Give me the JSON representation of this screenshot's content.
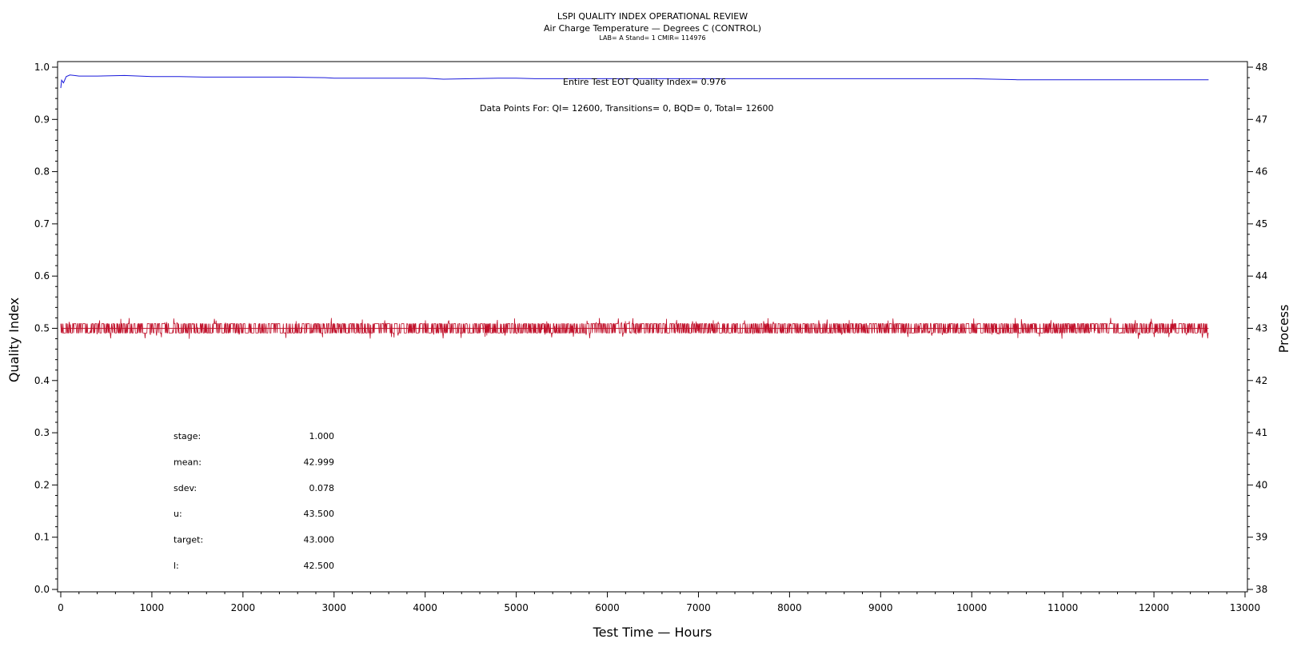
{
  "header": {
    "title": "LSPI QUALITY INDEX OPERATIONAL REVIEW",
    "subtitle": "Air Charge Temperature — Degrees C (CONTROL)",
    "info": "LAB= A Stand= 1 CMIR= 114976"
  },
  "annotations": {
    "eot": "Entire Test EOT Quality Index=   0.976",
    "points": "Data Points For: QI= 12600, Transitions=     0, BQD=     0, Total= 12600"
  },
  "stats": [
    {
      "label": "stage:",
      "value": "1.000"
    },
    {
      "label": "mean:",
      "value": "42.999"
    },
    {
      "label": "sdev:",
      "value": "0.078"
    },
    {
      "label": "u:",
      "value": "43.500"
    },
    {
      "label": "target:",
      "value": "43.000"
    },
    {
      "label": "l:",
      "value": "42.500"
    }
  ],
  "colors": {
    "quality_index": "#1a1adb",
    "process": "#c0102a"
  },
  "chart_data": {
    "type": "line",
    "title": "LSPI QUALITY INDEX OPERATIONAL REVIEW",
    "xlabel": "Test Time — Hours",
    "ylabel": "Quality Index",
    "y2label": "Process",
    "xlim": [
      0,
      13000
    ],
    "ylim": [
      0,
      1.0
    ],
    "y2lim": [
      38,
      48
    ],
    "x_ticks": [
      0,
      1000,
      2000,
      3000,
      4000,
      5000,
      6000,
      7000,
      8000,
      9000,
      10000,
      11000,
      12000,
      13000
    ],
    "y_ticks": [
      "0.0",
      "0.1",
      "0.2",
      "0.3",
      "0.4",
      "0.5",
      "0.6",
      "0.7",
      "0.8",
      "0.9",
      "1.0"
    ],
    "y2_ticks": [
      "38",
      "39",
      "40",
      "41",
      "42",
      "43",
      "44",
      "45",
      "46",
      "47",
      "48"
    ],
    "grid": false,
    "series": [
      {
        "name": "",
        "axis": "left",
        "x": [
          0,
          10,
          30,
          60,
          100,
          150,
          200,
          400,
          700,
          1000,
          1300,
          1600,
          2000,
          2500,
          2900,
          3000,
          3500,
          4000,
          4200,
          4500,
          4800,
          5000,
          5200,
          5500,
          6000,
          6500,
          7000,
          7500,
          8000,
          8500,
          9000,
          9500,
          10000,
          10500,
          11000,
          11500,
          12000,
          12600
        ],
        "values": [
          0.96,
          0.975,
          0.97,
          0.982,
          0.985,
          0.984,
          0.983,
          0.983,
          0.984,
          0.982,
          0.982,
          0.981,
          0.981,
          0.981,
          0.98,
          0.979,
          0.979,
          0.979,
          0.977,
          0.978,
          0.979,
          0.979,
          0.978,
          0.978,
          0.978,
          0.978,
          0.978,
          0.978,
          0.978,
          0.978,
          0.978,
          0.978,
          0.978,
          0.976,
          0.976,
          0.976,
          0.976,
          0.976
        ]
      },
      {
        "name": "",
        "axis": "right",
        "x": [
          0,
          12600
        ],
        "values": [
          42.999,
          42.999
        ],
        "band": [
          42.8,
          43.2
        ],
        "description_stats": {
          "mean": 42.999,
          "sdev": 0.078
        }
      }
    ]
  }
}
